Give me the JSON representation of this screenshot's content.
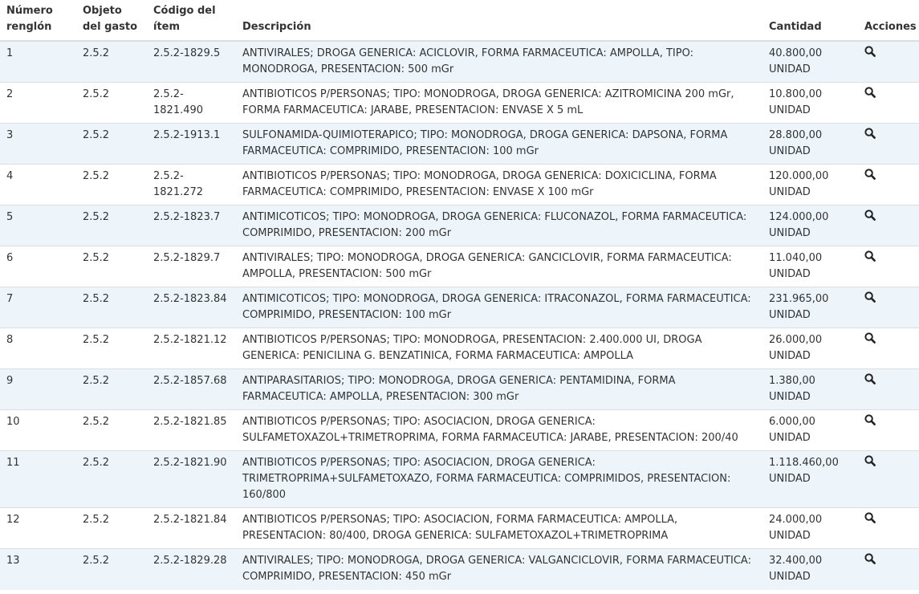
{
  "headers": {
    "numero": "Número renglón",
    "objeto": "Objeto del gasto",
    "codigo": "Código del ítem",
    "descripcion": "Descripción",
    "cantidad": "Cantidad",
    "acciones": "Acciones"
  },
  "action_icon": "search-icon",
  "rows": [
    {
      "n": "1",
      "obj": "2.5.2",
      "cod": "2.5.2-1829.5",
      "desc": "ANTIVIRALES; DROGA GENERICA: ACICLOVIR, FORMA FARMACEUTICA: AMPOLLA, TIPO: MONODROGA, PRESENTACION: 500 mGr",
      "qty": "40.800,00",
      "unit": "UNIDAD"
    },
    {
      "n": "2",
      "obj": "2.5.2",
      "cod": "2.5.2-1821.490",
      "desc": "ANTIBIOTICOS P/PERSONAS; TIPO: MONODROGA, DROGA GENERICA: AZITROMICINA 200 mGr, FORMA FARMACEUTICA: JARABE, PRESENTACION: ENVASE X 5 mL",
      "qty": "10.800,00",
      "unit": "UNIDAD"
    },
    {
      "n": "3",
      "obj": "2.5.2",
      "cod": "2.5.2-1913.1",
      "desc": "SULFONAMIDA-QUIMIOTERAPICO; TIPO: MONODROGA, DROGA GENERICA: DAPSONA, FORMA FARMACEUTICA: COMPRIMIDO, PRESENTACION: 100 mGr",
      "qty": "28.800,00",
      "unit": "UNIDAD"
    },
    {
      "n": "4",
      "obj": "2.5.2",
      "cod": "2.5.2-1821.272",
      "desc": "ANTIBIOTICOS P/PERSONAS; TIPO: MONODROGA, DROGA GENERICA: DOXICICLINA, FORMA FARMACEUTICA: COMPRIMIDO, PRESENTACION: ENVASE X 100 mGr",
      "qty": "120.000,00",
      "unit": "UNIDAD"
    },
    {
      "n": "5",
      "obj": "2.5.2",
      "cod": "2.5.2-1823.7",
      "desc": "ANTIMICOTICOS; TIPO: MONODROGA, DROGA GENERICA: FLUCONAZOL, FORMA FARMACEUTICA: COMPRIMIDO, PRESENTACION: 200 mGr",
      "qty": "124.000,00",
      "unit": "UNIDAD"
    },
    {
      "n": "6",
      "obj": "2.5.2",
      "cod": "2.5.2-1829.7",
      "desc": "ANTIVIRALES; TIPO: MONODROGA, DROGA GENERICA: GANCICLOVIR, FORMA FARMACEUTICA: AMPOLLA, PRESENTACION: 500 mGr",
      "qty": "11.040,00",
      "unit": "UNIDAD"
    },
    {
      "n": "7",
      "obj": "2.5.2",
      "cod": "2.5.2-1823.84",
      "desc": "ANTIMICOTICOS; TIPO: MONODROGA, DROGA GENERICA: ITRACONAZOL, FORMA FARMACEUTICA: COMPRIMIDO, PRESENTACION: 100 mGr",
      "qty": "231.965,00",
      "unit": "UNIDAD"
    },
    {
      "n": "8",
      "obj": "2.5.2",
      "cod": "2.5.2-1821.12",
      "desc": "ANTIBIOTICOS P/PERSONAS; TIPO: MONODROGA, PRESENTACION: 2.400.000 UI, DROGA GENERICA: PENICILINA G. BENZATINICA, FORMA FARMACEUTICA: AMPOLLA",
      "qty": "26.000,00",
      "unit": "UNIDAD"
    },
    {
      "n": "9",
      "obj": "2.5.2",
      "cod": "2.5.2-1857.68",
      "desc": "ANTIPARASITARIOS; TIPO: MONODROGA, DROGA GENERICA: PENTAMIDINA, FORMA FARMACEUTICA: AMPOLLA, PRESENTACION: 300 mGr",
      "qty": "1.380,00",
      "unit": "UNIDAD"
    },
    {
      "n": "10",
      "obj": "2.5.2",
      "cod": "2.5.2-1821.85",
      "desc": "ANTIBIOTICOS P/PERSONAS; TIPO: ASOCIACION, DROGA GENERICA: SULFAMETOXAZOL+TRIMETROPRIMA, FORMA FARMACEUTICA: JARABE, PRESENTACION: 200/40",
      "qty": "6.000,00",
      "unit": "UNIDAD"
    },
    {
      "n": "11",
      "obj": "2.5.2",
      "cod": "2.5.2-1821.90",
      "desc": "ANTIBIOTICOS P/PERSONAS; TIPO: ASOCIACION, DROGA GENERICA: TRIMETROPRIMA+SULFAMETOXAZO, FORMA FARMACEUTICA: COMPRIMIDOS, PRESENTACION: 160/800",
      "qty": "1.118.460,00",
      "unit": "UNIDAD"
    },
    {
      "n": "12",
      "obj": "2.5.2",
      "cod": "2.5.2-1821.84",
      "desc": "ANTIBIOTICOS P/PERSONAS; TIPO: ASOCIACION, FORMA FARMACEUTICA: AMPOLLA, PRESENTACION: 80/400, DROGA GENERICA: SULFAMETOXAZOL+TRIMETROPRIMA",
      "qty": "24.000,00",
      "unit": "UNIDAD"
    },
    {
      "n": "13",
      "obj": "2.5.2",
      "cod": "2.5.2-1829.28",
      "desc": "ANTIVIRALES; TIPO: MONODROGA, DROGA GENERICA: VALGANCICLOVIR, FORMA FARMACEUTICA: COMPRIMIDO, PRESENTACION: 450 mGr",
      "qty": "32.400,00",
      "unit": "UNIDAD"
    }
  ]
}
